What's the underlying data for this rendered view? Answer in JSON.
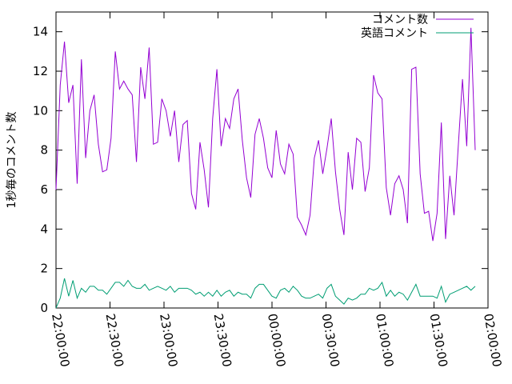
{
  "chart_data": {
    "type": "line",
    "title": "",
    "xlabel": "",
    "ylabel": "1秒毎のコメント数",
    "ylim": [
      0,
      15
    ],
    "yticks": [
      0,
      2,
      4,
      6,
      8,
      10,
      12,
      14
    ],
    "xlim": [
      "22:00:00",
      "02:00:00"
    ],
    "xticks": [
      "22:00:00",
      "22:30:00",
      "23:00:00",
      "23:30:00",
      "00:00:00",
      "00:30:00",
      "01:00:00",
      "01:30:00",
      "02:00:00"
    ],
    "grid": false,
    "legend_position": "top-right",
    "series": [
      {
        "name": "コメント数",
        "color": "#9400d3",
        "values": [
          6.0,
          11.3,
          13.5,
          10.4,
          11.3,
          6.3,
          12.6,
          7.6,
          10.0,
          10.8,
          8.3,
          6.9,
          7.0,
          8.6,
          13.0,
          11.1,
          11.5,
          11.1,
          10.8,
          7.4,
          12.2,
          10.6,
          13.2,
          8.3,
          8.4,
          10.6,
          10.0,
          8.7,
          10.0,
          7.4,
          9.3,
          9.5,
          5.8,
          5.0,
          8.4,
          7.0,
          5.1,
          9.6,
          12.1,
          8.2,
          9.6,
          9.1,
          10.6,
          11.1,
          8.5,
          6.6,
          5.6,
          8.8,
          9.6,
          8.6,
          7.1,
          6.6,
          9.0,
          7.3,
          6.8,
          8.3,
          7.8,
          4.6,
          4.2,
          3.7,
          4.7,
          7.6,
          8.5,
          6.8,
          8.1,
          9.6,
          6.9,
          5.0,
          3.7,
          7.9,
          6.0,
          8.6,
          8.4,
          5.9,
          7.1,
          11.8,
          10.9,
          10.6,
          6.1,
          4.7,
          6.3,
          6.7,
          6.0,
          4.3,
          12.1,
          12.2,
          6.8,
          4.8,
          4.9,
          3.4,
          4.8,
          9.4,
          3.5,
          6.7,
          4.7,
          8.2,
          11.6,
          8.2,
          14.2,
          8.0
        ]
      },
      {
        "name": "英語コメント",
        "color": "#009e73",
        "values": [
          0.0,
          0.5,
          1.5,
          0.6,
          1.4,
          0.5,
          1.0,
          0.8,
          1.1,
          1.1,
          0.9,
          0.9,
          0.7,
          1.0,
          1.3,
          1.3,
          1.1,
          1.4,
          1.1,
          1.0,
          1.0,
          1.2,
          0.9,
          1.0,
          1.1,
          1.0,
          0.9,
          1.1,
          0.8,
          1.0,
          1.0,
          1.0,
          0.9,
          0.7,
          0.8,
          0.6,
          0.8,
          0.6,
          0.9,
          0.6,
          0.8,
          0.9,
          0.6,
          0.8,
          0.7,
          0.7,
          0.5,
          1.0,
          1.2,
          1.2,
          0.9,
          0.6,
          0.5,
          0.9,
          1.0,
          0.8,
          1.1,
          0.9,
          0.6,
          0.5,
          0.5,
          0.6,
          0.7,
          0.5,
          1.0,
          1.2,
          0.6,
          0.4,
          0.2,
          0.5,
          0.4,
          0.5,
          0.7,
          0.7,
          1.0,
          0.9,
          1.0,
          1.3,
          0.6,
          0.9,
          0.6,
          0.8,
          0.7,
          0.4,
          0.8,
          1.2,
          0.6,
          0.6,
          0.6,
          0.6,
          0.5,
          1.1,
          0.3,
          0.7,
          0.8,
          0.9,
          1.0,
          1.1,
          0.9,
          1.1
        ]
      }
    ]
  }
}
